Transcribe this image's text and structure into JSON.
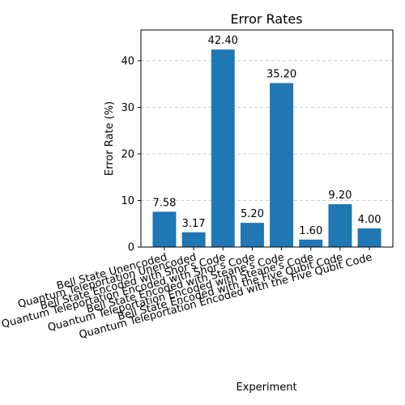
{
  "chart_data": {
    "type": "bar",
    "title": "Error Rates",
    "xlabel": "Experiment",
    "ylabel": "Error Rate (%)",
    "categories": [
      "Bell State Unencoded",
      "Quantum Teleportation Unencoded",
      "Bell State Encoded with Shor's Code",
      "Quantum Teleportation Encoded with Shor's Code",
      "Bell State Encoded with Steane's Code",
      "Quantum Teleportation Encoded with Steane's Code",
      "Bell State Encoded with the Five Qubit Code",
      "Quantum Teleportation Encoded with the Five Qubit Code"
    ],
    "values": [
      7.58,
      3.17,
      42.4,
      5.2,
      35.2,
      1.6,
      9.2,
      4.0
    ],
    "data_labels": [
      "7.58",
      "3.17",
      "42.40",
      "5.20",
      "35.20",
      "1.60",
      "9.20",
      "4.00"
    ],
    "ylim": [
      0,
      46.6
    ],
    "yticks": [
      0,
      10,
      20,
      30,
      40
    ],
    "grid": "y-dashed",
    "bar_color": "#1f77b4",
    "grid_color": "#b0b0b0"
  }
}
